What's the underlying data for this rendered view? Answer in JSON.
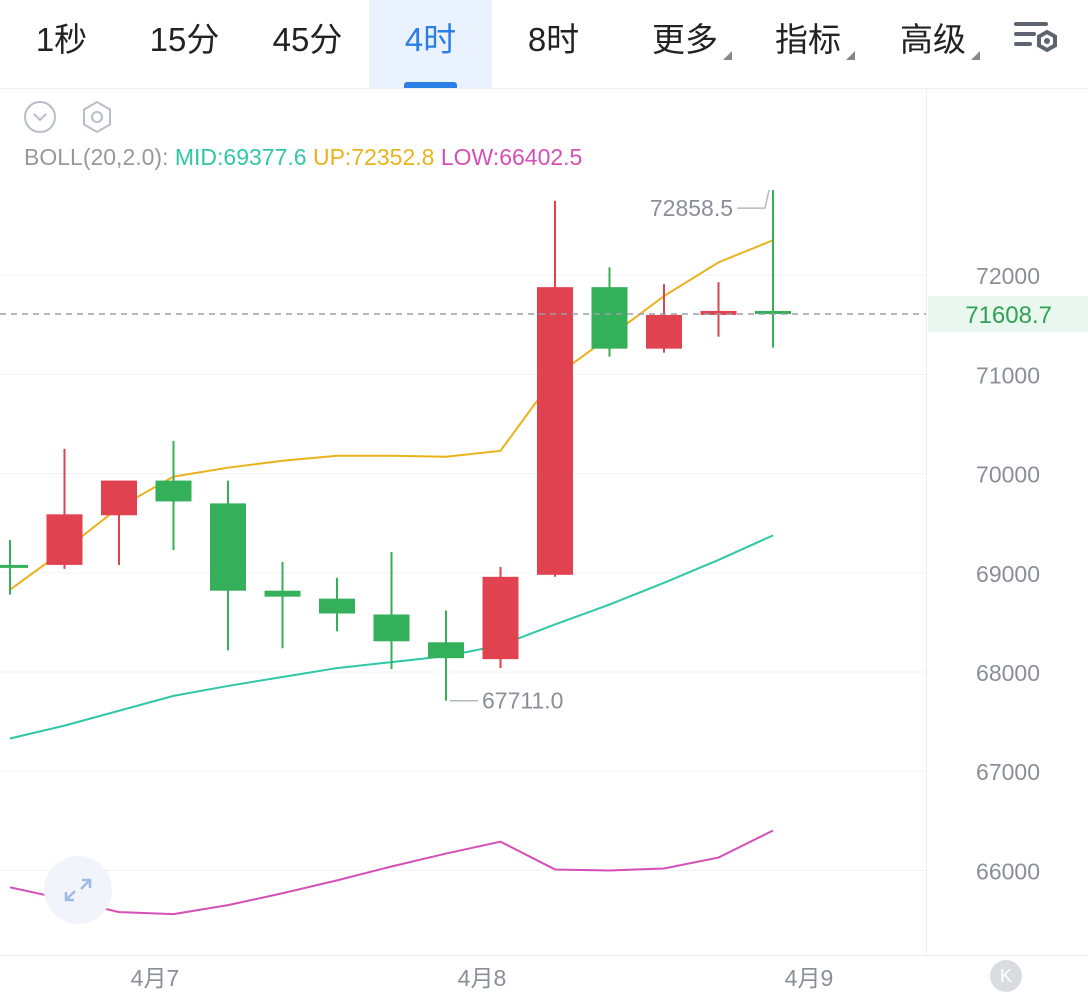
{
  "tabs": [
    {
      "label": "1秒",
      "active": false,
      "dropdown": false
    },
    {
      "label": "15分",
      "active": false,
      "dropdown": false
    },
    {
      "label": "45分",
      "active": false,
      "dropdown": false
    },
    {
      "label": "4时",
      "active": true,
      "dropdown": false
    },
    {
      "label": "8时",
      "active": false,
      "dropdown": false
    },
    {
      "label": "更多",
      "active": false,
      "dropdown": true
    },
    {
      "label": "指标",
      "active": false,
      "dropdown": true
    },
    {
      "label": "高级",
      "active": false,
      "dropdown": true
    }
  ],
  "indicator": {
    "label": "BOLL(20,2.0):",
    "mid": "MID:69377.6",
    "up": "UP:72352.8",
    "low": "LOW:66402.5"
  },
  "k_button_label": "K",
  "colors": {
    "up_candle": "#e0434f",
    "down_candle": "#35b05a",
    "mid_line": "#2fc7a6",
    "up_line": "#eab21a",
    "low_line": "#d64fb6",
    "accent": "#2b7fe6"
  },
  "chart_data": {
    "type": "candlestick",
    "ylim": [
      65450,
      72950
    ],
    "y_ticks": [
      66000,
      67000,
      68000,
      69000,
      70000,
      71000,
      72000
    ],
    "y_tick_labels": [
      "66000",
      "67000",
      "68000",
      "69000",
      "70000",
      "71000",
      "72000"
    ],
    "x_tick_labels": [
      {
        "label": "4月7",
        "index": 2.66
      },
      {
        "label": "4月8",
        "index": 8.66
      },
      {
        "label": "4月9",
        "index": 14.66
      }
    ],
    "last_price": 71608.7,
    "last_price_label": "71608.7",
    "high_label": "72858.5",
    "low_label": "67711.0",
    "high_index": 14,
    "low_index": 8,
    "candles": [
      {
        "open": 69080,
        "close": 69080,
        "high": 69330,
        "low": 68780
      },
      {
        "open": 69080,
        "close": 69590,
        "high": 70250,
        "low": 69040
      },
      {
        "open": 69580,
        "close": 69930,
        "high": 69930,
        "low": 69080
      },
      {
        "open": 69930,
        "close": 69720,
        "high": 70330,
        "low": 69230
      },
      {
        "open": 69700,
        "close": 68820,
        "high": 69930,
        "low": 68220
      },
      {
        "open": 68820,
        "close": 68760,
        "high": 69110,
        "low": 68240
      },
      {
        "open": 68740,
        "close": 68590,
        "high": 68950,
        "low": 68410
      },
      {
        "open": 68580,
        "close": 68310,
        "high": 69210,
        "low": 68030
      },
      {
        "open": 68300,
        "close": 68140,
        "high": 68620,
        "low": 67711
      },
      {
        "open": 68130,
        "close": 68960,
        "high": 69060,
        "low": 68040
      },
      {
        "open": 68980,
        "close": 71880,
        "high": 72750,
        "low": 68960
      },
      {
        "open": 71880,
        "close": 71260,
        "high": 72080,
        "low": 71180
      },
      {
        "open": 71260,
        "close": 71600,
        "high": 71910,
        "low": 71220
      },
      {
        "open": 71600,
        "close": 71640,
        "high": 71930,
        "low": 71380
      },
      {
        "open": 71640,
        "close": 71608.7,
        "high": 72858.5,
        "low": 71270
      }
    ],
    "series": [
      {
        "name": "UP",
        "values": [
          68830,
          69230,
          69660,
          69970,
          70060,
          70130,
          70180,
          70180,
          70170,
          70230,
          70980,
          71380,
          71790,
          72130,
          72352.8
        ]
      },
      {
        "name": "MID",
        "values": [
          67330,
          67460,
          67610,
          67760,
          67860,
          67950,
          68040,
          68100,
          68160,
          68270,
          68480,
          68680,
          68900,
          69130,
          69377.6
        ]
      },
      {
        "name": "LOW",
        "values": [
          65830,
          65710,
          65580,
          65560,
          65650,
          65770,
          65900,
          66040,
          66170,
          66290,
          66010,
          66000,
          66020,
          66130,
          66402.5
        ]
      }
    ]
  }
}
